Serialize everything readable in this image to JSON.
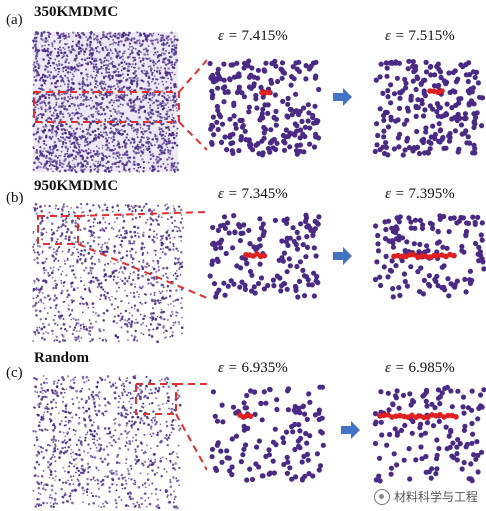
{
  "panels": [
    {
      "label": "(a)",
      "title": "350KMDMC",
      "strain_before": "7.415%",
      "strain_after": "7.515%"
    },
    {
      "label": "(b)",
      "title": "950KMDMC",
      "strain_before": "7.345%",
      "strain_after": "7.395%"
    },
    {
      "label": "(c)",
      "title": "Random",
      "strain_before": "6.935%",
      "strain_after": "6.985%"
    }
  ],
  "epsilon_symbol": "ε = ",
  "watermark": "材料科学与工程",
  "colors": {
    "atom": "#4b2a86",
    "defect": "#e02020",
    "dash": "#e03030",
    "arrow": "#4472c4"
  }
}
